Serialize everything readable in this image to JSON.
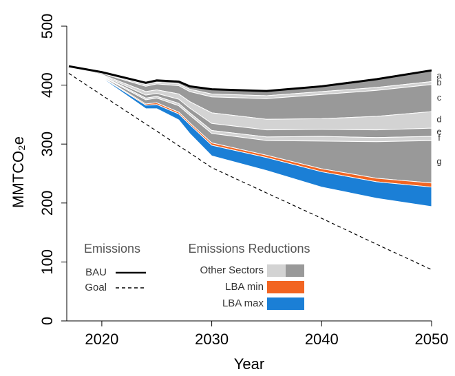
{
  "chart_data": {
    "type": "stacked_area",
    "xlabel": "Year",
    "ylabel": "MMTCO₂e",
    "x": [
      2017,
      2020,
      2024,
      2025,
      2027,
      2028,
      2030,
      2035,
      2040,
      2045,
      2050
    ],
    "xlim": [
      2017,
      2050
    ],
    "ylim": [
      0,
      500
    ],
    "xticks": [
      2020,
      2030,
      2040,
      2050
    ],
    "yticks": [
      0,
      100,
      200,
      300,
      400,
      500
    ],
    "legend_titles": {
      "emissions": "Emissions",
      "reductions": "Emissions Reductions",
      "other_sectors": "Other Sectors"
    },
    "lines": [
      {
        "name": "BAU",
        "color": "#000000",
        "dash": "solid",
        "values": [
          432,
          422,
          404,
          408,
          406,
          398,
          393,
          390,
          398,
          410,
          425
        ]
      },
      {
        "name": "Goal",
        "color": "#000000",
        "dash": "dashed",
        "values": [
          420,
          383,
          334,
          322,
          297,
          285,
          260,
          217,
          174,
          130,
          87
        ]
      }
    ],
    "series": [
      {
        "name": "a",
        "color": "#999999",
        "values": [
          0,
          1,
          3,
          3,
          4,
          5,
          8,
          8,
          9,
          14,
          19
        ]
      },
      {
        "name": "b",
        "color": "#d3d3d3",
        "values": [
          0,
          1,
          3,
          3,
          3,
          4,
          5,
          5,
          5,
          5,
          5
        ]
      },
      {
        "name": "c",
        "color": "#999999",
        "values": [
          0,
          2,
          9,
          10,
          14,
          17,
          27,
          35,
          41,
          44,
          46
        ]
      },
      {
        "name": "d",
        "color": "#d3d3d3",
        "values": [
          0,
          1,
          6,
          6,
          9,
          11,
          18,
          18,
          18,
          23,
          28
        ]
      },
      {
        "name": "e",
        "color": "#999999",
        "values": [
          0,
          1,
          5,
          5,
          7,
          8,
          12,
          12,
          12,
          13,
          14
        ]
      },
      {
        "name": "f",
        "color": "#d3d3d3",
        "values": [
          0,
          1,
          3,
          3,
          4,
          4,
          5,
          6,
          8,
          7,
          7
        ]
      },
      {
        "name": "g",
        "color": "#999999",
        "values": [
          0,
          1,
          7,
          8,
          11,
          13,
          16,
          25,
          47,
          62,
          72
        ]
      },
      {
        "name": "LBA min",
        "color": "#f26522",
        "values": [
          0,
          1,
          2,
          3,
          3,
          3,
          4,
          4,
          5,
          6,
          7
        ]
      },
      {
        "name": "LBA max",
        "color": "#1b7fd6",
        "values": [
          0,
          1,
          6,
          7,
          10,
          15,
          18,
          22,
          26,
          28,
          33
        ]
      }
    ]
  }
}
